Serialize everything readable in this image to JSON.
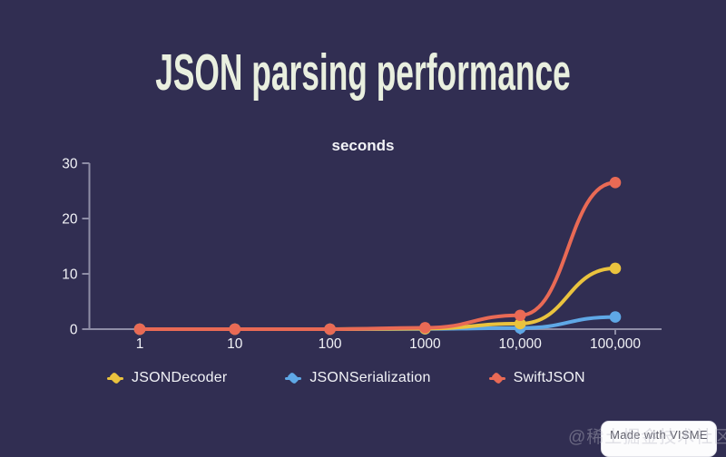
{
  "title": "JSON parsing performance",
  "chart_data": {
    "type": "line",
    "title": "JSON parsing performance",
    "unit_label": "seconds",
    "categories": [
      "1",
      "10",
      "100",
      "1000",
      "10,000",
      "100,000"
    ],
    "yticks": [
      0,
      10,
      20,
      30
    ],
    "ylim": [
      0,
      30
    ],
    "grid": false,
    "legend_position": "bottom",
    "series": [
      {
        "name": "JSONDecoder",
        "color": "#eac33e",
        "values": [
          0,
          0,
          0,
          0.1,
          1,
          11
        ]
      },
      {
        "name": "JSONSerialization",
        "color": "#5fa8e6",
        "values": [
          0,
          0,
          0,
          0.05,
          0.2,
          2.2
        ]
      },
      {
        "name": "SwiftJSON",
        "color": "#e96a55",
        "values": [
          0,
          0,
          0,
          0.25,
          2.5,
          26.5
        ]
      }
    ]
  },
  "badge": {
    "label": "Made with VISME"
  },
  "watermark": {
    "text": "@稀土掘金技术社区"
  },
  "colors": {
    "background": "#312e52",
    "title": "#e9efdf",
    "axis": "#8e8da6",
    "tick_text": "#f2f3f7"
  }
}
